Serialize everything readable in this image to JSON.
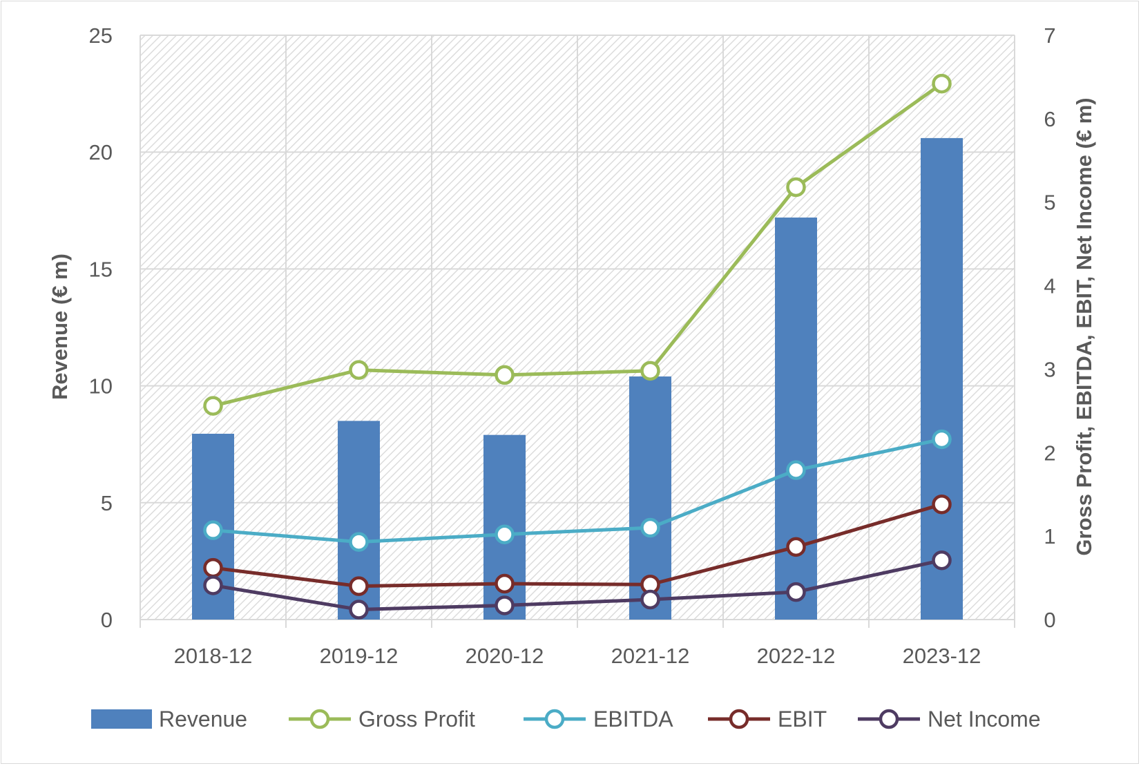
{
  "chart_data": {
    "type": "bar+line",
    "categories": [
      "2018-12",
      "2019-12",
      "2020-12",
      "2021-12",
      "2022-12",
      "2023-12"
    ],
    "primary_axis": {
      "title": "Revenue (€ m)",
      "ylim": [
        0,
        25
      ],
      "ticks": [
        "0",
        "5",
        "10",
        "15",
        "20",
        "25"
      ]
    },
    "secondary_axis": {
      "title": "Gross Profit, EBITDA, EBIT, Net Income (€ m)",
      "ylim": [
        0,
        7
      ],
      "ticks": [
        "0",
        "1",
        "2",
        "3",
        "4",
        "5",
        "6",
        "7"
      ]
    },
    "bar_series": {
      "name": "Revenue",
      "color": "#4f81bd",
      "values": [
        7.95,
        8.5,
        7.9,
        10.4,
        17.2,
        20.6
      ]
    },
    "line_series": [
      {
        "name": "Gross Profit",
        "color": "#9bbb59",
        "values": [
          2.56,
          2.99,
          2.93,
          2.98,
          5.18,
          6.42
        ]
      },
      {
        "name": "EBITDA",
        "color": "#4bacc6",
        "values": [
          1.07,
          0.93,
          1.02,
          1.1,
          1.79,
          2.16
        ]
      },
      {
        "name": "EBIT",
        "color": "#772c2a",
        "values": [
          0.62,
          0.4,
          0.43,
          0.42,
          0.87,
          1.38
        ]
      },
      {
        "name": "Net Income",
        "color": "#4e3b62",
        "values": [
          0.41,
          0.12,
          0.17,
          0.24,
          0.33,
          0.71
        ]
      }
    ],
    "grid": true,
    "legend_position": "bottom"
  }
}
